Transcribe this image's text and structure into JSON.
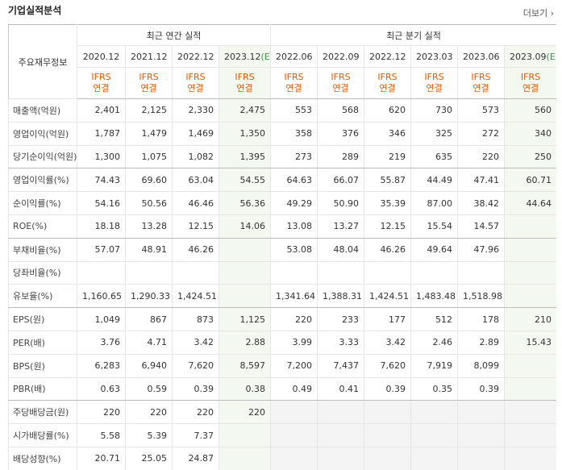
{
  "header": {
    "title": "기업실적분석",
    "more": "더보기"
  },
  "table": {
    "corner": "주요재무정보",
    "groups": [
      {
        "label": "최근 연간 실적",
        "span": 4
      },
      {
        "label": "최근 분기 실적",
        "span": 6
      }
    ],
    "columns": [
      {
        "date": "2020.12",
        "basis": "IFRS\n연결"
      },
      {
        "date": "2021.12",
        "basis": "IFRS\n연결"
      },
      {
        "date": "2022.12",
        "basis": "IFRS\n연결"
      },
      {
        "date": "2023.12",
        "estimate": "(E)",
        "basis": "IFRS\n연결"
      },
      {
        "date": "2022.06",
        "basis": "IFRS\n연결"
      },
      {
        "date": "2022.09",
        "basis": "IFRS\n연결"
      },
      {
        "date": "2022.12",
        "basis": "IFRS\n연결"
      },
      {
        "date": "2023.03",
        "basis": "IFRS\n연결"
      },
      {
        "date": "2023.06",
        "basis": "IFRS\n연결"
      },
      {
        "date": "2023.09",
        "estimate": "(E)",
        "basis": "IFRS\n연결"
      }
    ],
    "rows": [
      {
        "label": "매출액(억원)",
        "cells": [
          "2,401",
          "2,125",
          "2,330",
          "2,475",
          "553",
          "568",
          "620",
          "730",
          "573",
          "560"
        ]
      },
      {
        "label": "영업이익(억원)",
        "cells": [
          "1,787",
          "1,479",
          "1,469",
          "1,350",
          "358",
          "376",
          "346",
          "325",
          "272",
          "340"
        ]
      },
      {
        "label": "당기순이익(억원)",
        "cells": [
          "1,300",
          "1,075",
          "1,082",
          "1,395",
          "273",
          "289",
          "219",
          "635",
          "220",
          "250"
        ]
      },
      {
        "label": "영업이익률(%)",
        "cells": [
          "74.43",
          "69.60",
          "63.04",
          "54.55",
          "64.63",
          "66.07",
          "55.87",
          "44.49",
          "47.41",
          "60.71"
        ]
      },
      {
        "label": "순이익률(%)",
        "cells": [
          "54.16",
          "50.56",
          "46.46",
          "56.36",
          "49.29",
          "50.90",
          "35.39",
          "87.00",
          "38.42",
          "44.64"
        ]
      },
      {
        "label": "ROE(%)",
        "cells": [
          "18.18",
          "13.28",
          "12.15",
          "14.06",
          "13.08",
          "13.27",
          "12.15",
          "15.54",
          "14.57",
          null
        ]
      },
      {
        "label": "부채비율(%)",
        "cells": [
          "57.07",
          "48.91",
          "46.26",
          null,
          "53.08",
          "48.04",
          "46.26",
          "49.64",
          "47.96",
          null
        ]
      },
      {
        "label": "당좌비율(%)",
        "cells": [
          null,
          null,
          null,
          null,
          null,
          null,
          null,
          null,
          null,
          null
        ]
      },
      {
        "label": "유보율(%)",
        "cells": [
          "1,160.65",
          "1,290.33",
          "1,424.51",
          null,
          "1,341.64",
          "1,388.31",
          "1,424.51",
          "1,483.48",
          "1,518.98",
          null
        ]
      },
      {
        "label": "EPS(원)",
        "cells": [
          "1,049",
          "867",
          "873",
          "1,125",
          "220",
          "233",
          "177",
          "512",
          "178",
          "210"
        ]
      },
      {
        "label": "PER(배)",
        "cells": [
          "3.76",
          "4.71",
          "3.42",
          "2.88",
          "3.99",
          "3.33",
          "3.42",
          "2.46",
          "2.89",
          "15.43"
        ]
      },
      {
        "label": "BPS(원)",
        "cells": [
          "6,283",
          "6,940",
          "7,620",
          "8,597",
          "7,200",
          "7,437",
          "7,620",
          "7,919",
          "8,099",
          null
        ]
      },
      {
        "label": "PBR(배)",
        "cells": [
          "0.63",
          "0.59",
          "0.39",
          "0.38",
          "0.49",
          "0.41",
          "0.39",
          "0.35",
          "0.39",
          null
        ]
      },
      {
        "label": "주당배당금(원)",
        "cells": [
          "220",
          "220",
          "220",
          "220",
          null,
          null,
          null,
          null,
          null,
          null
        ]
      },
      {
        "label": "시가배당률(%)",
        "cells": [
          "5.58",
          "5.39",
          "7.37",
          null,
          null,
          null,
          null,
          null,
          null,
          null
        ]
      },
      {
        "label": "배당성향(%)",
        "cells": [
          "20.71",
          "25.05",
          "24.87",
          null,
          null,
          null,
          null,
          null,
          null,
          null
        ]
      }
    ]
  }
}
